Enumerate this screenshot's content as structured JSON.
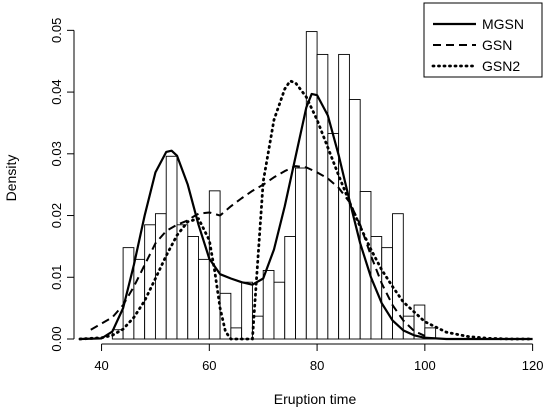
{
  "chart_data": {
    "type": "bar",
    "xlabel": "Eruption time",
    "ylabel": "Density",
    "xlim": [
      36,
      121
    ],
    "ylim": [
      0,
      0.052
    ],
    "xticks": [
      "40",
      "60",
      "80",
      "100",
      "120"
    ],
    "yticks": [
      "0.00",
      "0.01",
      "0.02",
      "0.03",
      "0.04",
      "0.05"
    ],
    "histogram": {
      "bin_width": 2,
      "start": 42,
      "densities": [
        0.0015,
        0.0148,
        0.0129,
        0.0185,
        0.0203,
        0.0296,
        0.0185,
        0.0166,
        0.0129,
        0.024,
        0.0074,
        0.0018,
        0.0092,
        0.0037,
        0.0111,
        0.0092,
        0.0166,
        0.0277,
        0.0498,
        0.0461,
        0.0333,
        0.0461,
        0.0388,
        0.0239,
        0.0166,
        0.0148,
        0.0203,
        0.0037,
        0.0055,
        0.0018,
        0.0
      ]
    },
    "series": [
      {
        "name": "MGSN",
        "style": "solid",
        "x": [
          36,
          40,
          42,
          44,
          46,
          48,
          50,
          52,
          53,
          54,
          56,
          58,
          60,
          62,
          64,
          66,
          68,
          70,
          72,
          74,
          76,
          78,
          79,
          80,
          82,
          84,
          86,
          88,
          90,
          92,
          94,
          96,
          98,
          100,
          104,
          108,
          112,
          116,
          120
        ],
        "y": [
          0.0,
          0.0001,
          0.0012,
          0.005,
          0.012,
          0.02,
          0.027,
          0.0303,
          0.0305,
          0.0297,
          0.025,
          0.0185,
          0.013,
          0.0105,
          0.0098,
          0.0092,
          0.0088,
          0.0098,
          0.0145,
          0.0215,
          0.0295,
          0.0375,
          0.0397,
          0.0395,
          0.0362,
          0.0298,
          0.0225,
          0.0155,
          0.01,
          0.0058,
          0.003,
          0.0014,
          0.0006,
          0.0002,
          0.0,
          0.0,
          0.0,
          0.0,
          0.0
        ]
      },
      {
        "name": "GSN",
        "style": "dashed",
        "x": [
          38,
          42,
          44,
          46,
          48,
          50,
          52,
          54,
          56,
          57,
          58,
          60,
          62,
          64,
          66,
          68,
          70,
          72,
          74,
          76,
          78,
          80,
          82,
          84,
          86,
          88,
          90,
          92,
          94,
          96,
          98,
          100
        ],
        "y": [
          0.0015,
          0.0035,
          0.0055,
          0.0085,
          0.012,
          0.0155,
          0.0175,
          0.0185,
          0.0192,
          0.0198,
          0.0203,
          0.0205,
          0.02,
          0.0215,
          0.0228,
          0.024,
          0.025,
          0.0262,
          0.0272,
          0.028,
          0.0278,
          0.027,
          0.026,
          0.0245,
          0.0222,
          0.0185,
          0.0135,
          0.009,
          0.0055,
          0.003,
          0.0013,
          0.0005
        ]
      },
      {
        "name": "GSN2",
        "style": "dotted",
        "x": [
          36,
          40,
          42,
          44,
          46,
          48,
          50,
          52,
          54,
          56,
          58,
          60,
          61,
          62,
          63,
          64,
          66,
          68,
          70,
          72,
          74,
          75,
          76,
          78,
          80,
          82,
          84,
          86,
          88,
          90,
          92,
          94,
          96,
          100,
          104,
          108,
          112,
          116,
          120
        ],
        "y": [
          0.0,
          0.0002,
          0.0006,
          0.0016,
          0.0035,
          0.0062,
          0.0098,
          0.0135,
          0.0168,
          0.019,
          0.0195,
          0.016,
          0.011,
          0.005,
          0.0012,
          0.0,
          0.0,
          0.0,
          0.0255,
          0.0355,
          0.0405,
          0.0418,
          0.0415,
          0.0392,
          0.0355,
          0.031,
          0.0265,
          0.0222,
          0.0182,
          0.0145,
          0.0112,
          0.0085,
          0.006,
          0.0028,
          0.0011,
          0.0004,
          0.0001,
          0.0,
          0.0
        ]
      }
    ],
    "legend": {
      "position": "top-right",
      "labels": [
        "MGSN",
        "GSN",
        "GSN2"
      ]
    },
    "colors": {
      "line": "#000000",
      "bar_fill": "#ffffff",
      "bar_stroke": "#000000"
    }
  }
}
